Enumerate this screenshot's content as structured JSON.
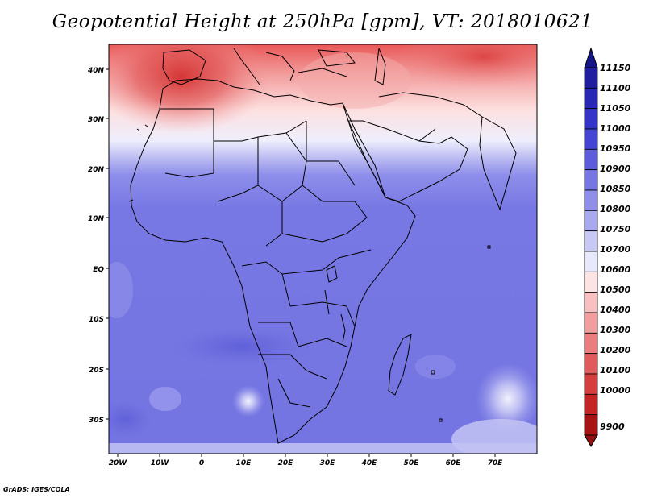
{
  "title": "Geopotential Height at 250hPa [gpm], VT: 2018010621",
  "footer": "GrADS: IGES/COLA",
  "map": {
    "lon_labels": [
      "20W",
      "10W",
      "0",
      "10E",
      "20E",
      "30E",
      "40E",
      "50E",
      "60E",
      "70E"
    ],
    "lat_labels": [
      "40N",
      "30N",
      "20N",
      "10N",
      "EQ",
      "10S",
      "20S",
      "30S"
    ]
  },
  "colorbar": {
    "labels": [
      "11150",
      "11100",
      "11050",
      "11000",
      "10950",
      "10900",
      "10850",
      "10800",
      "10750",
      "10700",
      "10600",
      "10500",
      "10400",
      "10300",
      "10200",
      "10100",
      "10000",
      "9900"
    ],
    "colors": [
      "#1e1e9e",
      "#2828b4",
      "#3434c8",
      "#4545d4",
      "#5d5ddc",
      "#7777e4",
      "#8f8fea",
      "#a9a9f0",
      "#c8c8f5",
      "#e8e8fc",
      "#fde4e4",
      "#f8c0c0",
      "#f29e9e",
      "#ea7d7d",
      "#e05c5c",
      "#d43e3e",
      "#c42424",
      "#a81414"
    ],
    "top_arrow_color": "#15158a",
    "bottom_arrow_color": "#951010"
  }
}
